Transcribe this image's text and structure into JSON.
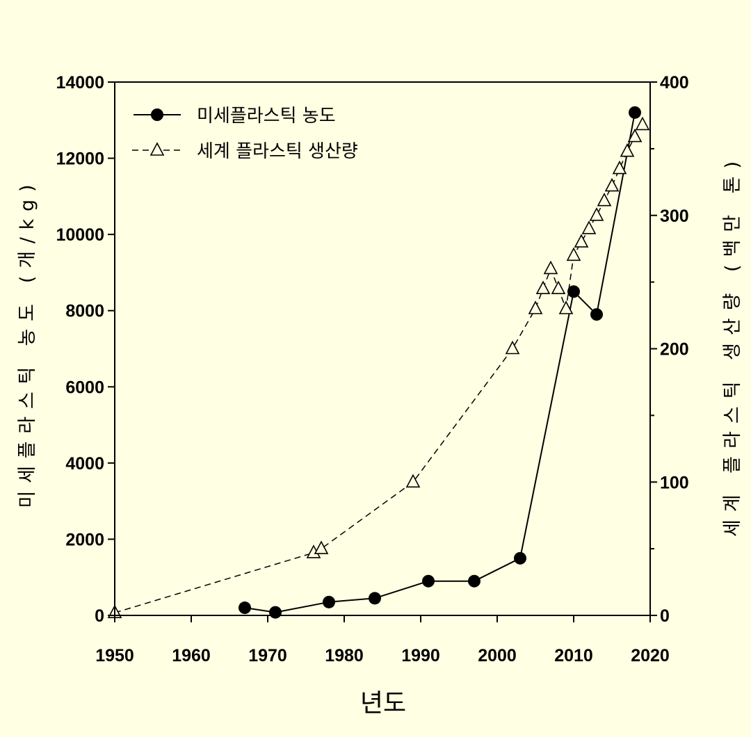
{
  "colors": {
    "background": "#FFFFE3",
    "ink": "#000000",
    "bottom_strip": "#FFFFFF"
  },
  "chart_data": {
    "type": "line",
    "title": "",
    "xlabel": "년도",
    "ylabel": "미세플라스틱 농도 (개/kg)",
    "y2label": "세계 플라스틱 생산량 (백만 톤)",
    "xlim": [
      1950,
      2020
    ],
    "ylim": [
      0,
      14000
    ],
    "y2lim": [
      0,
      400
    ],
    "x_ticks": [
      1950,
      1960,
      1970,
      1980,
      1990,
      2000,
      2010,
      2020
    ],
    "y_ticks": [
      0,
      2000,
      4000,
      6000,
      8000,
      10000,
      12000,
      14000
    ],
    "y2_ticks": [
      0,
      100,
      200,
      300,
      400
    ],
    "y2_minor_ticks": [
      50,
      150,
      250,
      350
    ],
    "grid": false,
    "legend_position": "top-left",
    "series": [
      {
        "name": "미세플라스틱 농도",
        "axis": "left",
        "marker": "filled-circle",
        "line_style": "solid",
        "x": [
          1967,
          1971,
          1978,
          1984,
          1991,
          1997,
          2003,
          2010,
          2013,
          2018
        ],
        "y": [
          200,
          80,
          350,
          450,
          900,
          900,
          1500,
          8500,
          7900,
          13200
        ]
      },
      {
        "name": "세계 플라스틱 생산량",
        "axis": "right",
        "marker": "open-triangle",
        "line_style": "dashed",
        "x": [
          1950,
          1976,
          1977,
          1989,
          2002,
          2005,
          2006,
          2007,
          2008,
          2009,
          2010,
          2011,
          2012,
          2013,
          2014,
          2015,
          2016,
          2017,
          2018,
          2019
        ],
        "y": [
          2,
          47,
          50,
          100,
          200,
          230,
          245,
          260,
          245,
          230,
          270,
          280,
          290,
          300,
          311,
          322,
          335,
          348,
          359,
          368
        ]
      }
    ]
  }
}
